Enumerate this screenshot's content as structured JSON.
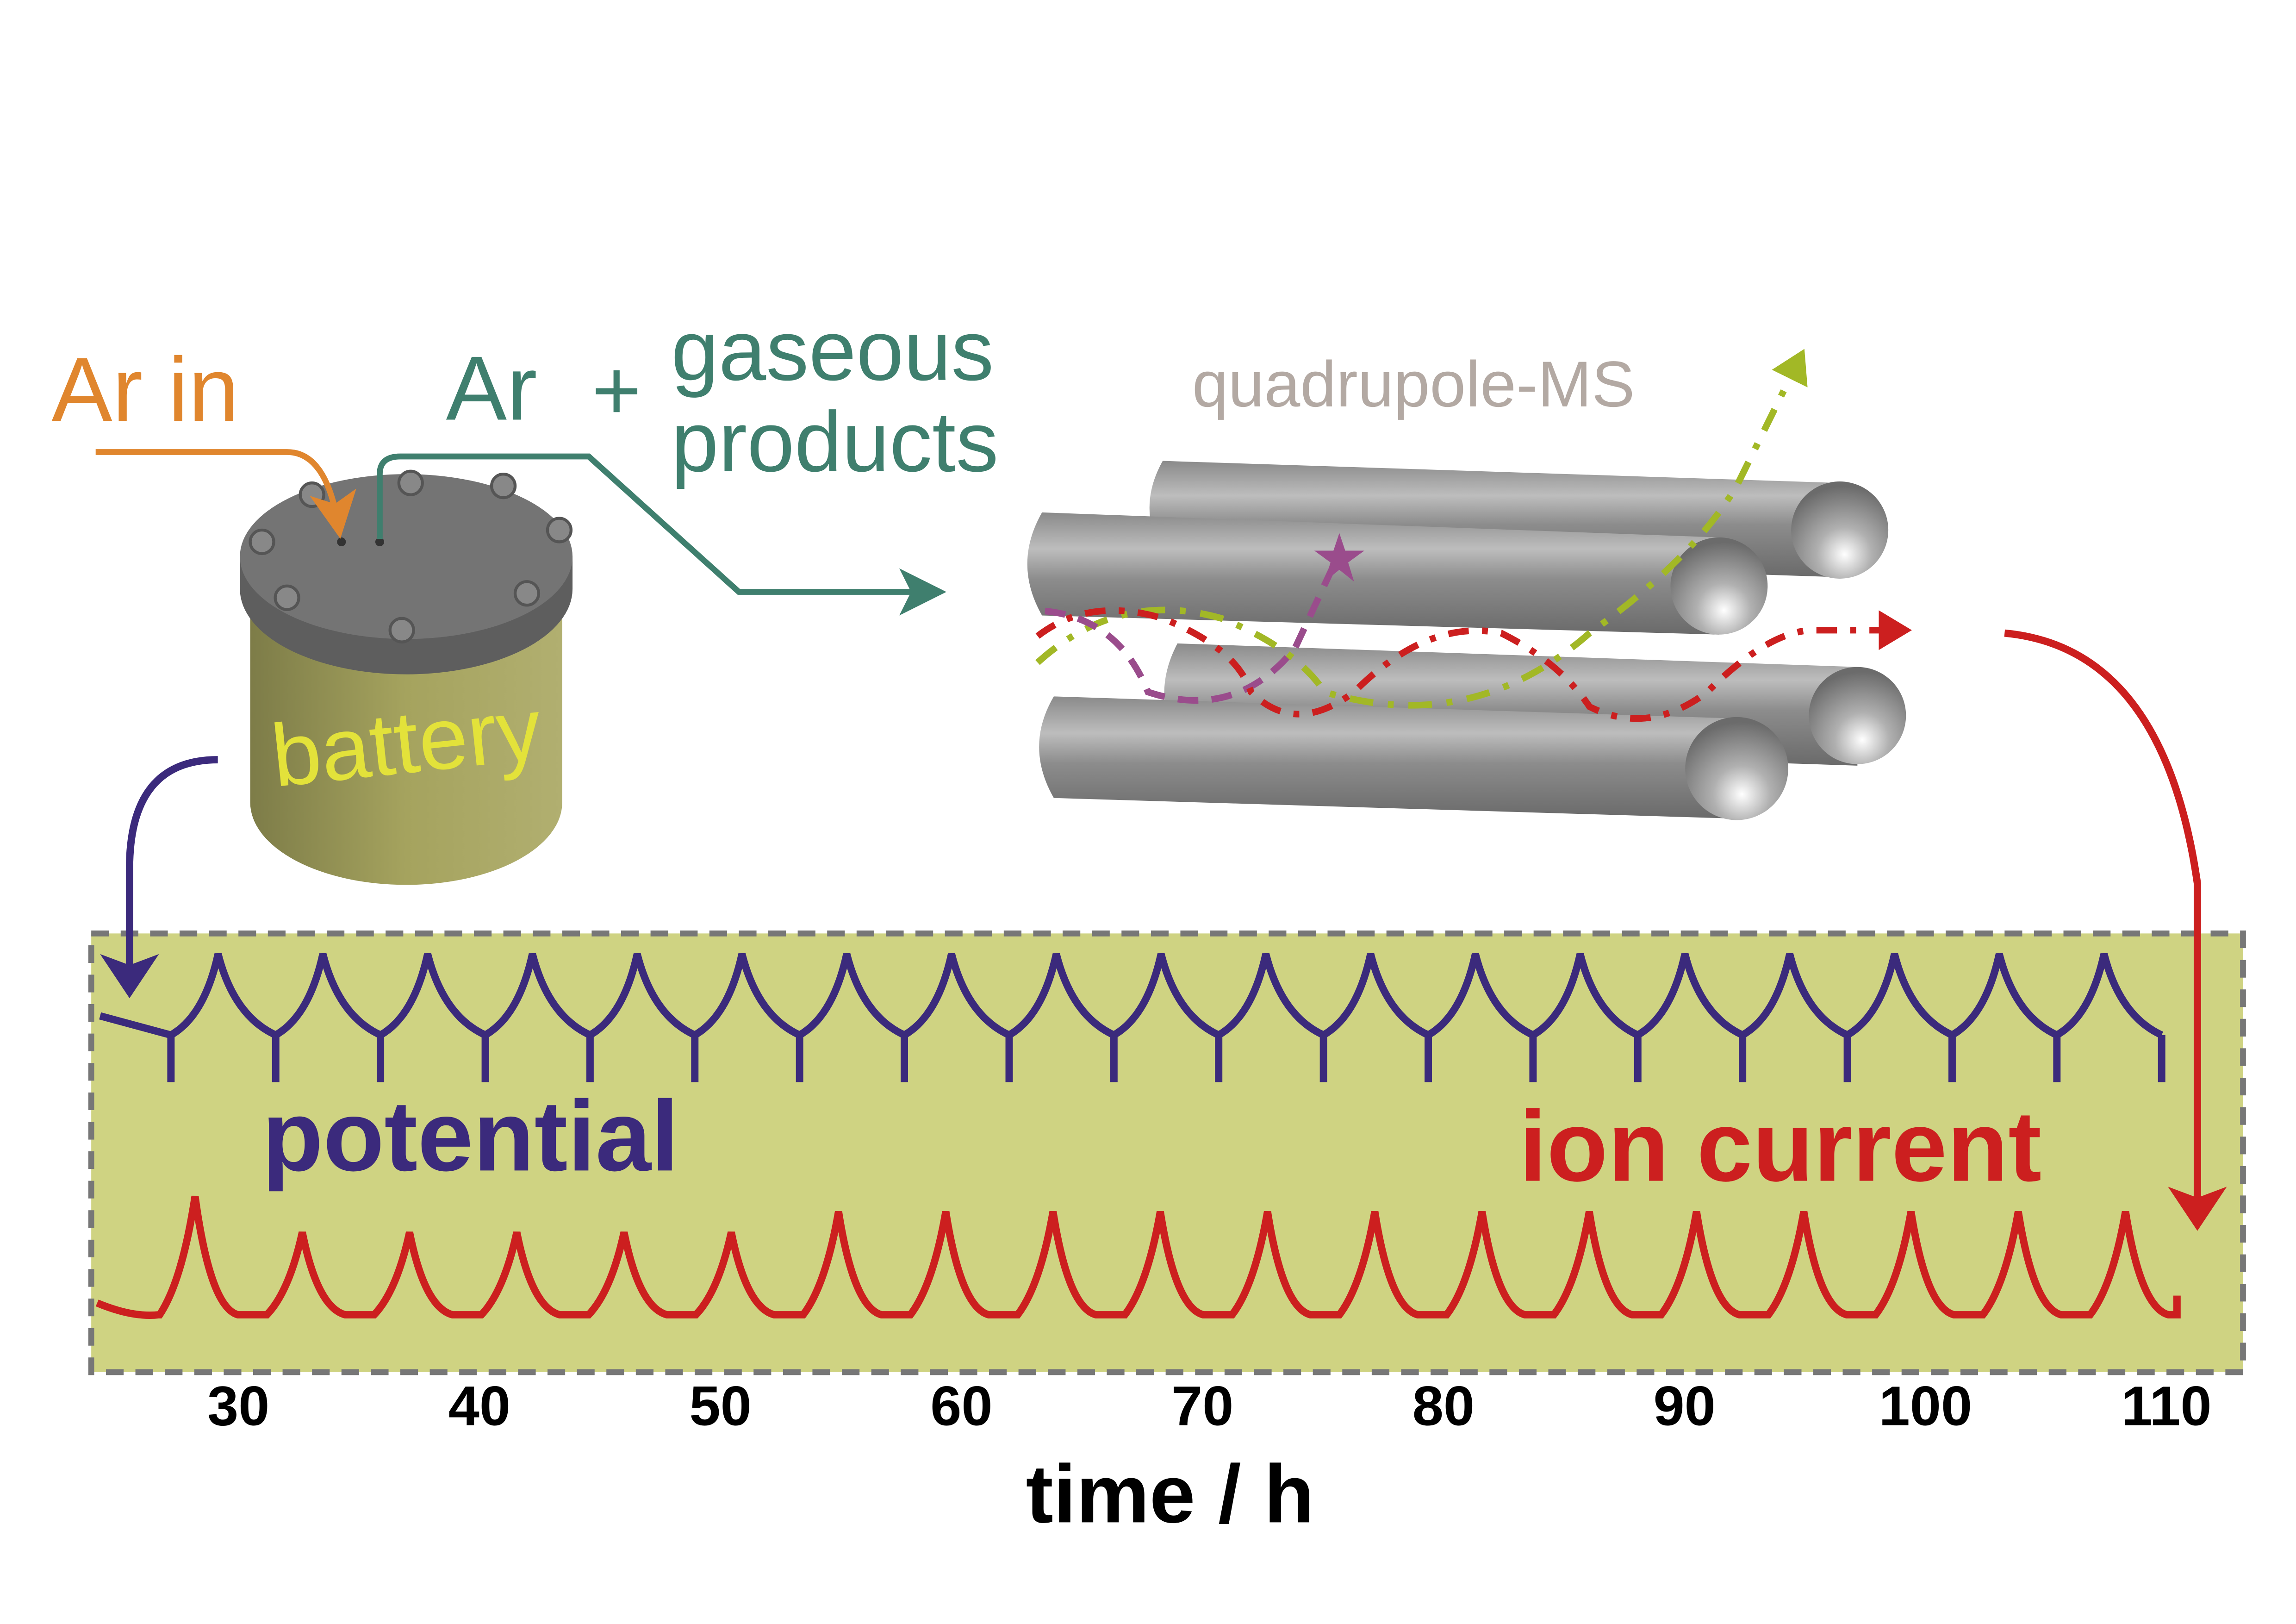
{
  "labels": {
    "ar_in": "Ar in",
    "ar": "Ar",
    "plus": "+",
    "gaseous": "gaseous",
    "products": "products",
    "quadrupole": "quadrupole-MS",
    "battery": "battery",
    "potential": "potential",
    "ion_current": "ion current"
  },
  "colors": {
    "ar_in": "#e0862e",
    "gas": "#3f7f6e",
    "quadrupole": "#b3a9a3",
    "battery_text": "#e3e23a",
    "potential": "#3b2a7c",
    "ion_current": "#cc1f1f",
    "chart_bg": "#cfd382",
    "green_ion": "#a2b826",
    "purple_ion": "#9a4c8c"
  },
  "chart_data": {
    "type": "line",
    "xlabel": "time / h",
    "xticks": [
      "30",
      "40",
      "50",
      "60",
      "70",
      "80",
      "90",
      "100",
      "110"
    ],
    "xlim": [
      24,
      113
    ],
    "series": [
      {
        "name": "potential",
        "cycles": 19,
        "start": 27.2,
        "end": 109.8
      },
      {
        "name": "ion current",
        "cycles": 19,
        "first_peak": 28.2,
        "last_peak": 108.3,
        "relative_peak_heights": [
          1.15,
          0.8,
          0.8,
          0.8,
          0.8,
          0.8,
          1,
          1,
          1,
          1,
          1,
          1,
          1,
          1,
          1,
          1,
          1,
          1,
          1
        ]
      }
    ]
  }
}
